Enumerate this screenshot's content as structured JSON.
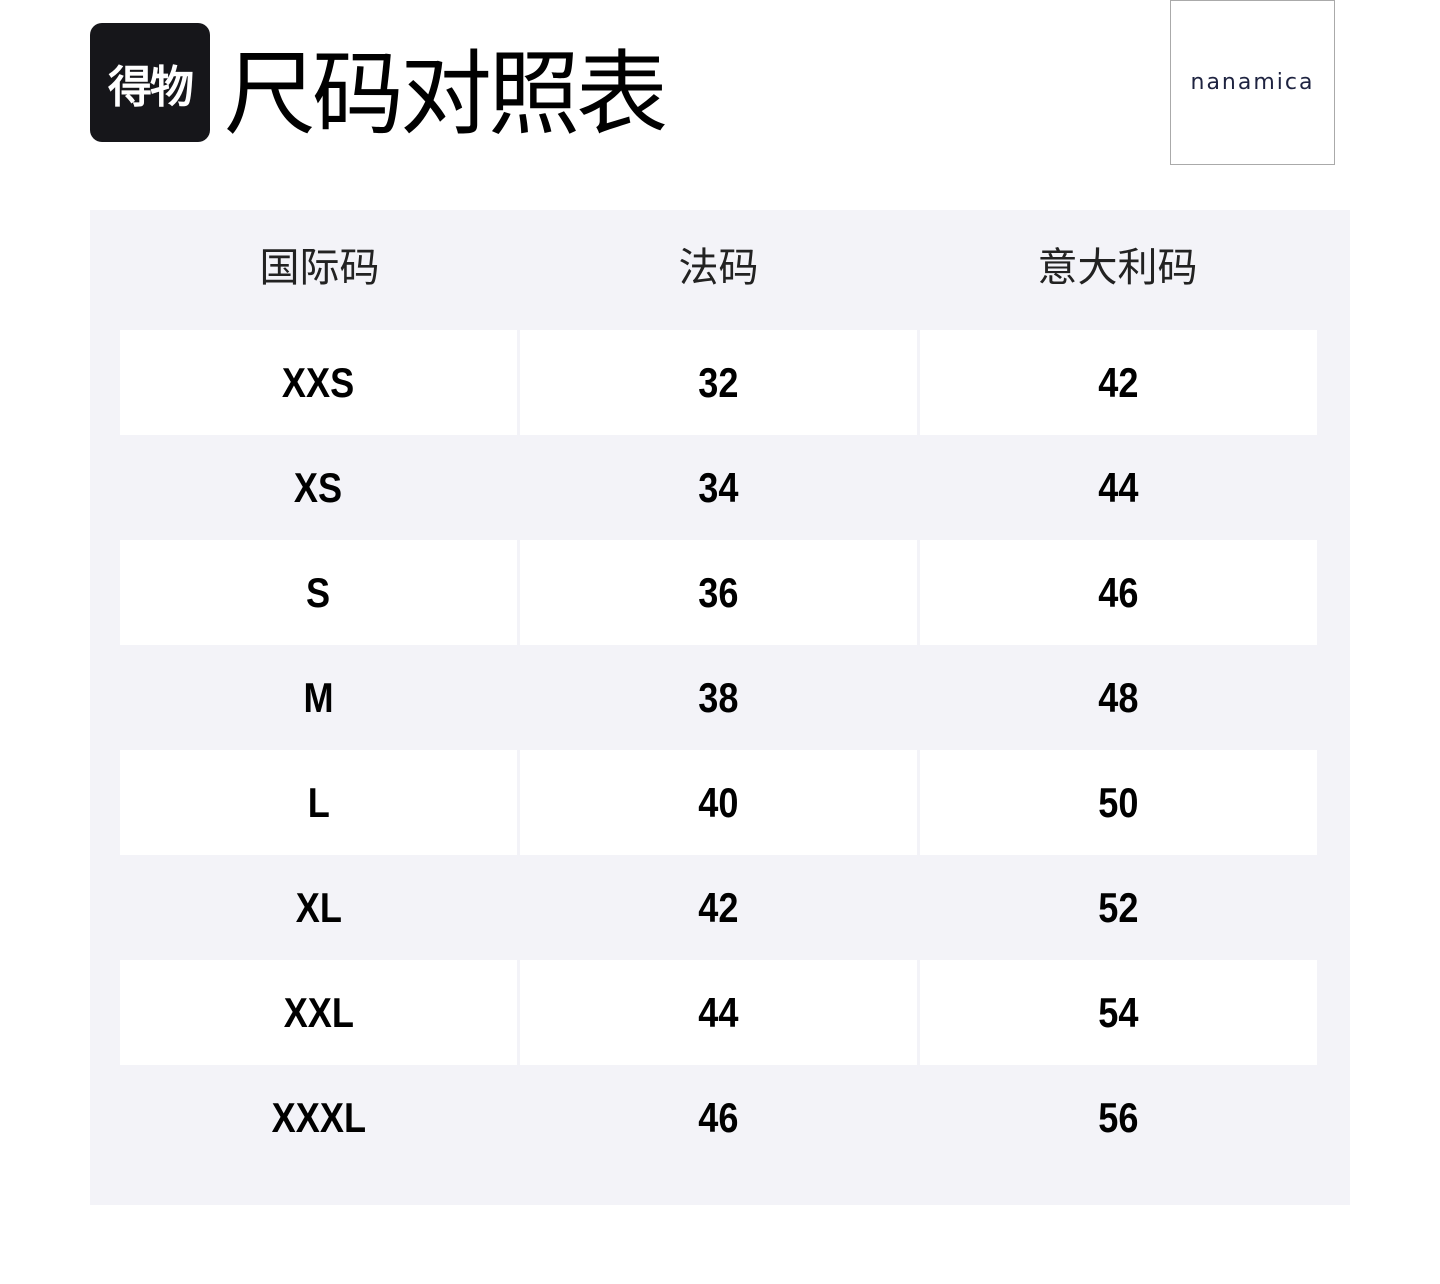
{
  "header": {
    "logo_text": "得物",
    "title": "尺码对照表",
    "brand_logo_text": "nanamica"
  },
  "table": {
    "columns": [
      "国际码",
      "法码",
      "意大利码"
    ],
    "rows": [
      [
        "XXS",
        "32",
        "42"
      ],
      [
        "XS",
        "34",
        "44"
      ],
      [
        "S",
        "36",
        "46"
      ],
      [
        "M",
        "38",
        "48"
      ],
      [
        "L",
        "40",
        "50"
      ],
      [
        "XL",
        "42",
        "52"
      ],
      [
        "XXL",
        "44",
        "54"
      ],
      [
        "XXXL",
        "46",
        "56"
      ]
    ]
  },
  "colors": {
    "table_bg": "#f3f3f8",
    "logo_bg": "#16161a"
  }
}
